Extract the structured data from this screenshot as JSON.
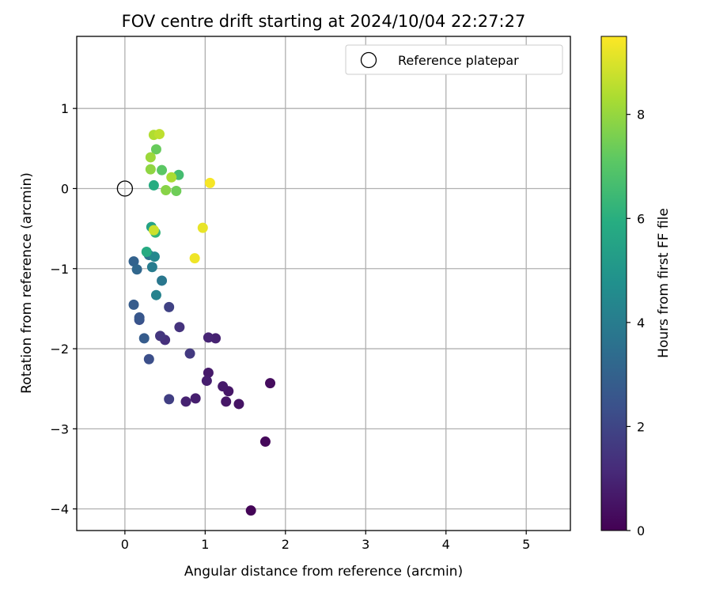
{
  "chart_data": {
    "type": "scatter",
    "title": "FOV centre drift starting at 2024/10/04 22:27:27",
    "xlabel": "Angular distance from reference (arcmin)",
    "ylabel": "Rotation from reference (arcmin)",
    "xlim": [
      -0.6,
      5.55
    ],
    "ylim": [
      -4.27,
      1.9
    ],
    "xticks": [
      0,
      1,
      2,
      3,
      4,
      5
    ],
    "yticks": [
      -4,
      -3,
      -2,
      -1,
      0,
      1
    ],
    "grid": true,
    "legend": {
      "placement": "upper-right",
      "entries": [
        "Reference platepar"
      ]
    },
    "reference_point": {
      "label": "Reference platepar",
      "x": 0,
      "y": 0
    },
    "colorbar": {
      "label": "Hours from first FF file",
      "colormap": "viridis",
      "range": [
        0,
        9.5
      ],
      "ticks": [
        0,
        2,
        4,
        6,
        8
      ]
    },
    "series": [
      {
        "points": [
          {
            "x": 1.57,
            "y": -4.02,
            "c": 0.1
          },
          {
            "x": 1.75,
            "y": -3.16,
            "c": 0.2
          },
          {
            "x": 1.81,
            "y": -2.43,
            "c": 0.3
          },
          {
            "x": 1.42,
            "y": -2.69,
            "c": 0.5
          },
          {
            "x": 1.29,
            "y": -2.53,
            "c": 0.6
          },
          {
            "x": 1.26,
            "y": -2.66,
            "c": 0.6
          },
          {
            "x": 1.22,
            "y": -2.47,
            "c": 0.7
          },
          {
            "x": 1.04,
            "y": -2.3,
            "c": 0.7
          },
          {
            "x": 1.02,
            "y": -2.4,
            "c": 0.8
          },
          {
            "x": 0.88,
            "y": -2.62,
            "c": 0.8
          },
          {
            "x": 0.76,
            "y": -2.66,
            "c": 0.9
          },
          {
            "x": 1.13,
            "y": -1.87,
            "c": 0.9
          },
          {
            "x": 1.04,
            "y": -1.86,
            "c": 1.0
          },
          {
            "x": 0.5,
            "y": -1.89,
            "c": 1.3
          },
          {
            "x": 0.68,
            "y": -1.73,
            "c": 1.4
          },
          {
            "x": 0.44,
            "y": -1.84,
            "c": 1.5
          },
          {
            "x": 0.81,
            "y": -2.06,
            "c": 1.6
          },
          {
            "x": 0.55,
            "y": -2.63,
            "c": 1.8
          },
          {
            "x": 0.55,
            "y": -1.48,
            "c": 1.9
          },
          {
            "x": 0.3,
            "y": -2.13,
            "c": 2.3
          },
          {
            "x": 0.18,
            "y": -1.64,
            "c": 2.4
          },
          {
            "x": 0.18,
            "y": -1.61,
            "c": 2.6
          },
          {
            "x": 0.11,
            "y": -1.45,
            "c": 2.8
          },
          {
            "x": 0.24,
            "y": -1.87,
            "c": 2.8
          },
          {
            "x": 0.11,
            "y": -0.91,
            "c": 3.0
          },
          {
            "x": 0.15,
            "y": -1.01,
            "c": 3.2
          },
          {
            "x": 0.3,
            "y": -0.83,
            "c": 3.6
          },
          {
            "x": 0.46,
            "y": -1.15,
            "c": 3.8
          },
          {
            "x": 0.34,
            "y": -0.98,
            "c": 4.0
          },
          {
            "x": 0.39,
            "y": -1.33,
            "c": 4.2
          },
          {
            "x": 0.37,
            "y": -0.85,
            "c": 4.4
          },
          {
            "x": 0.27,
            "y": -0.79,
            "c": 5.8
          },
          {
            "x": 0.33,
            "y": -0.48,
            "c": 5.5
          },
          {
            "x": 0.38,
            "y": -0.55,
            "c": 6.2
          },
          {
            "x": 0.36,
            "y": 0.04,
            "c": 5.9
          },
          {
            "x": 0.67,
            "y": 0.17,
            "c": 6.6
          },
          {
            "x": 0.46,
            "y": 0.23,
            "c": 7.1
          },
          {
            "x": 0.64,
            "y": -0.03,
            "c": 7.4
          },
          {
            "x": 0.39,
            "y": 0.49,
            "c": 7.3
          },
          {
            "x": 0.51,
            "y": -0.02,
            "c": 7.8
          },
          {
            "x": 0.32,
            "y": 0.24,
            "c": 7.9
          },
          {
            "x": 0.32,
            "y": 0.39,
            "c": 8.1
          },
          {
            "x": 0.58,
            "y": 0.14,
            "c": 8.3
          },
          {
            "x": 0.36,
            "y": 0.67,
            "c": 8.4
          },
          {
            "x": 0.43,
            "y": 0.68,
            "c": 8.6
          },
          {
            "x": 0.36,
            "y": -0.52,
            "c": 8.8
          },
          {
            "x": 0.97,
            "y": -0.49,
            "c": 9.2
          },
          {
            "x": 0.87,
            "y": -0.87,
            "c": 9.3
          },
          {
            "x": 1.06,
            "y": 0.07,
            "c": 9.4
          }
        ]
      }
    ]
  }
}
